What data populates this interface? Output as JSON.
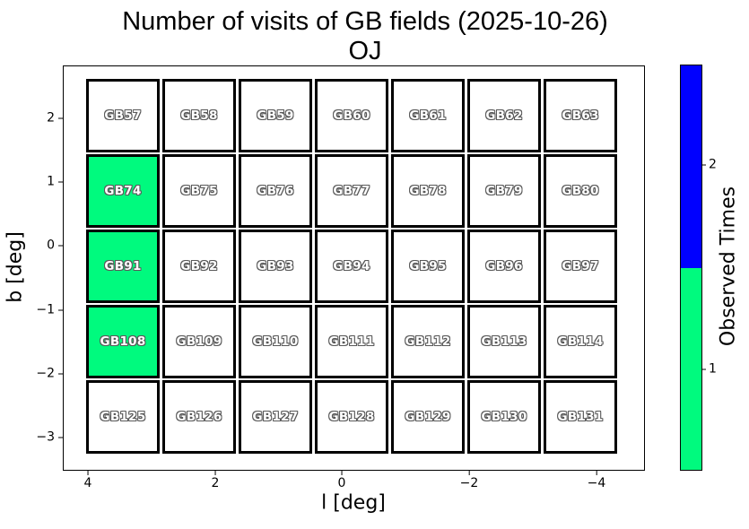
{
  "title": {
    "line1": "Number of visits of GB fields (2025-10-26)",
    "line2": "OJ"
  },
  "axes": {
    "xlabel": "l [deg]",
    "ylabel": "b [deg]",
    "xticks": [
      "4",
      "2",
      "0",
      "−2",
      "−4"
    ],
    "yticks": [
      "2",
      "1",
      "0",
      "−1",
      "−2",
      "−3"
    ]
  },
  "colorbar": {
    "label": "Observed Times",
    "tick_labels": [
      "2",
      "1"
    ]
  },
  "chart_data": {
    "type": "heatmap",
    "title": "Number of visits of GB fields (2025-10-26)",
    "subtitle": "OJ",
    "xlabel": "l [deg]",
    "ylabel": "b [deg]",
    "x_axis_inverted": true,
    "xticks": [
      4,
      2,
      0,
      -2,
      -4
    ],
    "yticks": [
      2,
      1,
      0,
      -1,
      -2,
      -3
    ],
    "grid_shape": [
      5,
      7
    ],
    "colors": {
      "0": "#ffffff",
      "1": "#00fa7e",
      "2": "#0000ff"
    },
    "colorbar": {
      "label": "Observed Times",
      "ticks": [
        2,
        1
      ],
      "low_color": "#00fa7e",
      "high_color": "#0000ff"
    },
    "rows": [
      {
        "cells": [
          {
            "label": "GB57",
            "observed": 0
          },
          {
            "label": "GB58",
            "observed": 0
          },
          {
            "label": "GB59",
            "observed": 0
          },
          {
            "label": "GB60",
            "observed": 0
          },
          {
            "label": "GB61",
            "observed": 0
          },
          {
            "label": "GB62",
            "observed": 0
          },
          {
            "label": "GB63",
            "observed": 0
          }
        ]
      },
      {
        "cells": [
          {
            "label": "GB74",
            "observed": 1
          },
          {
            "label": "GB75",
            "observed": 0
          },
          {
            "label": "GB76",
            "observed": 0
          },
          {
            "label": "GB77",
            "observed": 0
          },
          {
            "label": "GB78",
            "observed": 0
          },
          {
            "label": "GB79",
            "observed": 0
          },
          {
            "label": "GB80",
            "observed": 0
          }
        ]
      },
      {
        "cells": [
          {
            "label": "GB91",
            "observed": 1
          },
          {
            "label": "GB92",
            "observed": 0
          },
          {
            "label": "GB93",
            "observed": 0
          },
          {
            "label": "GB94",
            "observed": 0
          },
          {
            "label": "GB95",
            "observed": 0
          },
          {
            "label": "GB96",
            "observed": 0
          },
          {
            "label": "GB97",
            "observed": 0
          }
        ]
      },
      {
        "cells": [
          {
            "label": "GB108",
            "observed": 1
          },
          {
            "label": "GB109",
            "observed": 0
          },
          {
            "label": "GB110",
            "observed": 0
          },
          {
            "label": "GB111",
            "observed": 0
          },
          {
            "label": "GB112",
            "observed": 0
          },
          {
            "label": "GB113",
            "observed": 0
          },
          {
            "label": "GB114",
            "observed": 0
          }
        ]
      },
      {
        "cells": [
          {
            "label": "GB125",
            "observed": 0
          },
          {
            "label": "GB126",
            "observed": 0
          },
          {
            "label": "GB127",
            "observed": 0
          },
          {
            "label": "GB128",
            "observed": 0
          },
          {
            "label": "GB129",
            "observed": 0
          },
          {
            "label": "GB130",
            "observed": 0
          },
          {
            "label": "GB131",
            "observed": 0
          }
        ]
      }
    ]
  }
}
